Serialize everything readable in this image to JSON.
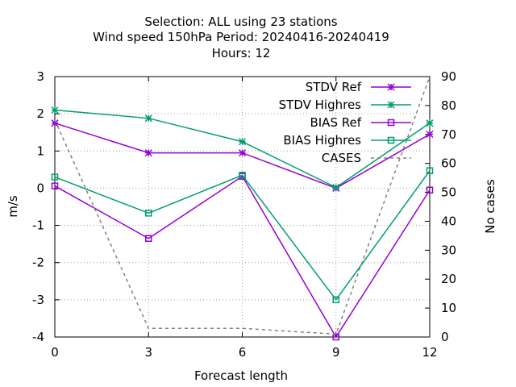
{
  "chart_data": {
    "type": "line",
    "title_lines": [
      "Selection: ALL using    23 stations",
      "Wind speed 150hPa   Period: 20240416-20240419",
      "Hours:  12"
    ],
    "xlabel": "Forecast length",
    "ylabel": "m/s",
    "y2label": "No cases",
    "x": [
      0,
      3,
      6,
      9,
      12
    ],
    "xlim": [
      0,
      12
    ],
    "ylim": [
      -4,
      3
    ],
    "y2lim": [
      0,
      90
    ],
    "xticks": [
      0,
      3,
      6,
      9,
      12
    ],
    "yticks": [
      -4,
      -3,
      -2,
      -1,
      0,
      1,
      2,
      3
    ],
    "y2ticks": [
      0,
      10,
      20,
      30,
      40,
      50,
      60,
      70,
      80,
      90
    ],
    "grid": true,
    "legend_position": "top-right",
    "series": [
      {
        "name": "STDV Ref",
        "axis": "y",
        "marker": "star",
        "color": "#9400d3",
        "dash": false,
        "values": [
          1.75,
          0.95,
          0.95,
          0.0,
          1.45
        ]
      },
      {
        "name": "STDV Highres",
        "axis": "y",
        "marker": "star",
        "color": "#009e73",
        "dash": false,
        "values": [
          2.1,
          1.88,
          1.25,
          0.02,
          1.75
        ]
      },
      {
        "name": "BIAS Ref",
        "axis": "y",
        "marker": "square",
        "color": "#9400d3",
        "dash": false,
        "values": [
          0.06,
          -1.35,
          0.32,
          -4.0,
          -0.05
        ]
      },
      {
        "name": "BIAS Highres",
        "axis": "y",
        "marker": "square",
        "color": "#009e73",
        "dash": false,
        "values": [
          0.3,
          -0.67,
          0.35,
          -3.0,
          0.47
        ]
      },
      {
        "name": "CASES",
        "axis": "y2",
        "marker": "none",
        "color": "#808080",
        "dash": true,
        "values": [
          75,
          3,
          3,
          1,
          90
        ]
      }
    ]
  }
}
